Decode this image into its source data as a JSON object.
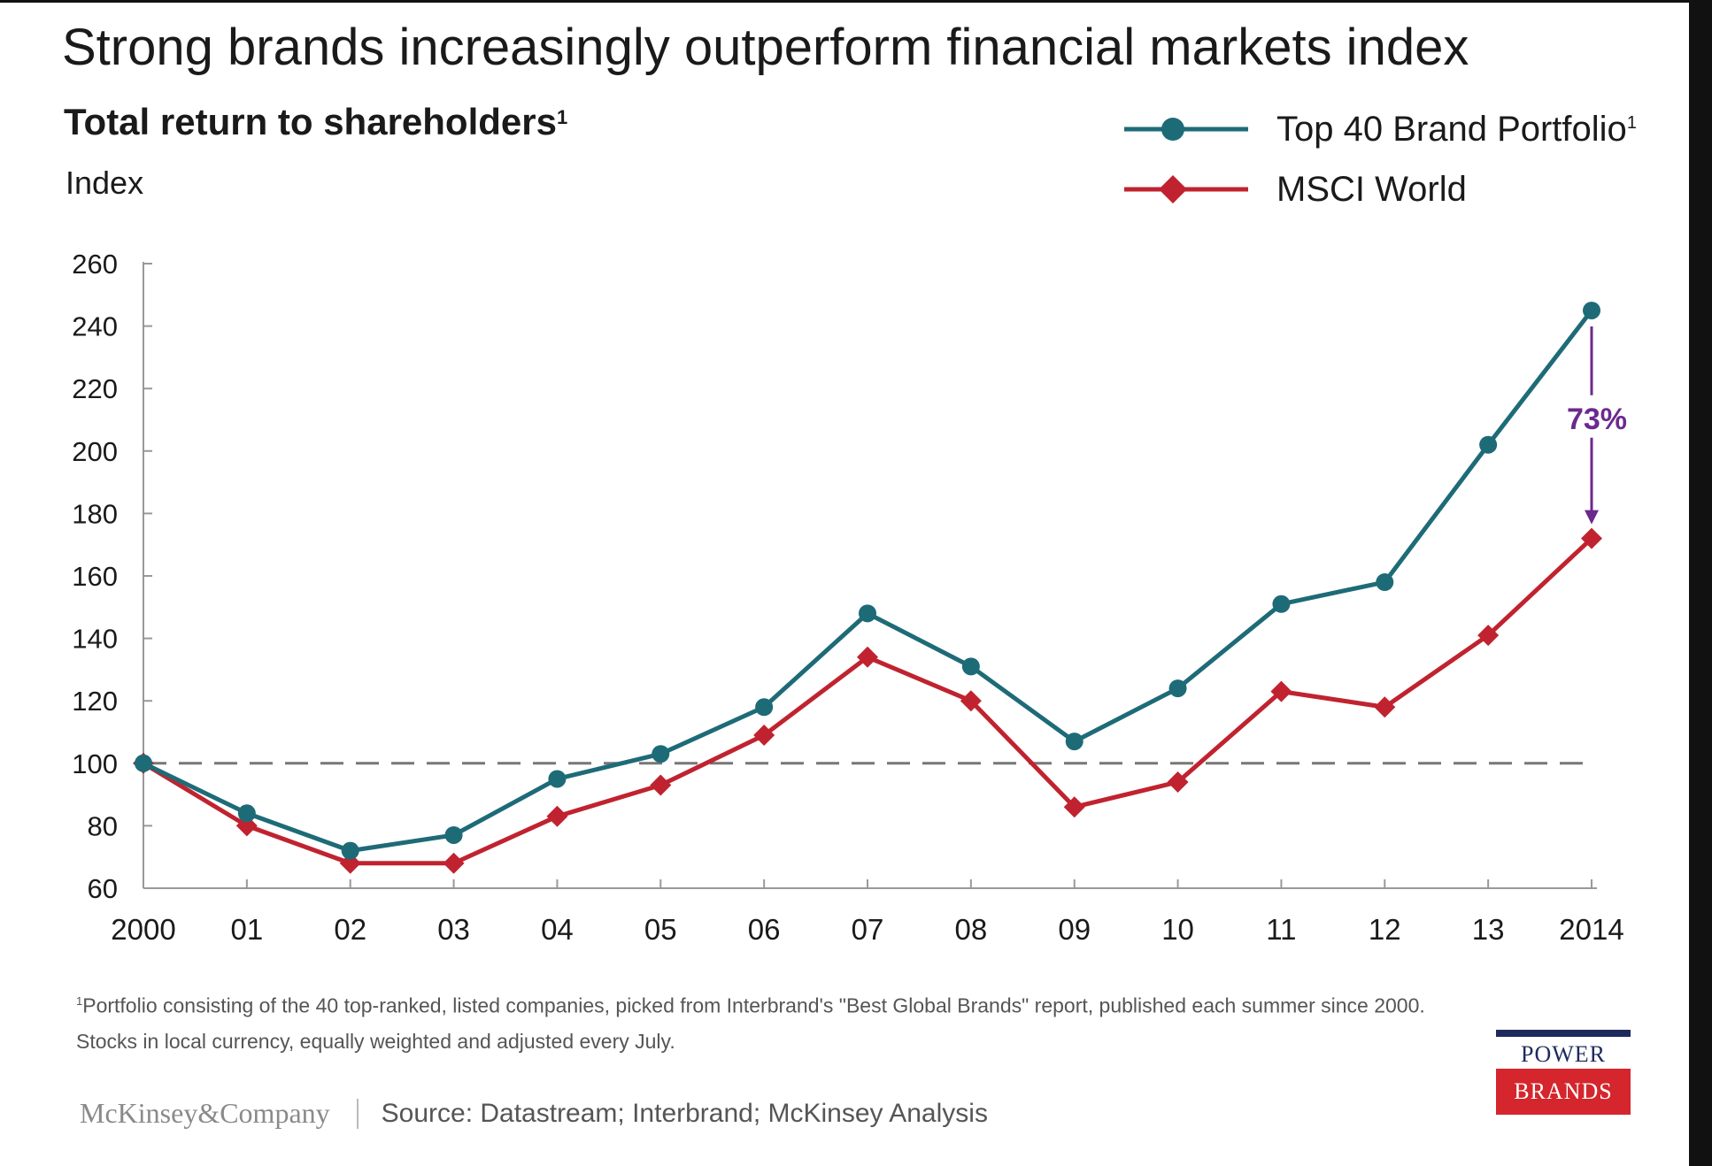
{
  "title": "Strong brands increasingly outperform financial markets index",
  "subtitle": "Total return to shareholders",
  "subtitle_sup": "1",
  "ylabel": "Index",
  "legend": [
    {
      "label": "Top 40 Brand Portfolio",
      "sup": "1",
      "color": "#1e6b78",
      "marker": "circle"
    },
    {
      "label": "MSCI World",
      "sup": "",
      "color": "#c0232f",
      "marker": "diamond"
    }
  ],
  "chart_data": {
    "type": "line",
    "title": "Strong brands increasingly outperform financial markets index",
    "subtitle": "Total return to shareholders",
    "ylabel": "Index",
    "xlabel": "",
    "categories": [
      "2000",
      "01",
      "02",
      "03",
      "04",
      "05",
      "06",
      "07",
      "08",
      "09",
      "10",
      "11",
      "12",
      "13",
      "2014"
    ],
    "series": [
      {
        "name": "Top 40 Brand Portfolio",
        "color": "#1e6b78",
        "marker": "circle",
        "values": [
          100,
          84,
          72,
          77,
          95,
          103,
          118,
          148,
          131,
          107,
          124,
          151,
          158,
          202,
          245
        ]
      },
      {
        "name": "MSCI World",
        "color": "#c0232f",
        "marker": "diamond",
        "values": [
          100,
          80,
          68,
          68,
          83,
          93,
          109,
          134,
          120,
          86,
          94,
          123,
          118,
          141,
          172
        ]
      }
    ],
    "ylim": [
      60,
      260
    ],
    "yticks": [
      60,
      80,
      100,
      120,
      140,
      160,
      180,
      200,
      220,
      240,
      260
    ],
    "reference_line": {
      "value": 100,
      "style": "dashed"
    },
    "annotation": {
      "text": "73%",
      "category": "2014",
      "from": 245,
      "to": 172,
      "color": "#6b2a8e"
    },
    "grid": false,
    "legend_position": "top-right"
  },
  "footnote": {
    "sup": "1",
    "text": "Portfolio consisting of the 40 top-ranked, listed companies, picked from Interbrand's \"Best Global Brands\" report, published each summer since 2000. Stocks in local currency, equally weighted and adjusted every July."
  },
  "footer": {
    "brand": "McKinsey&Company",
    "source": "Source: Datastream; Interbrand;  McKinsey Analysis"
  },
  "logo": {
    "line1": "POWER",
    "line2": "BRANDS"
  }
}
